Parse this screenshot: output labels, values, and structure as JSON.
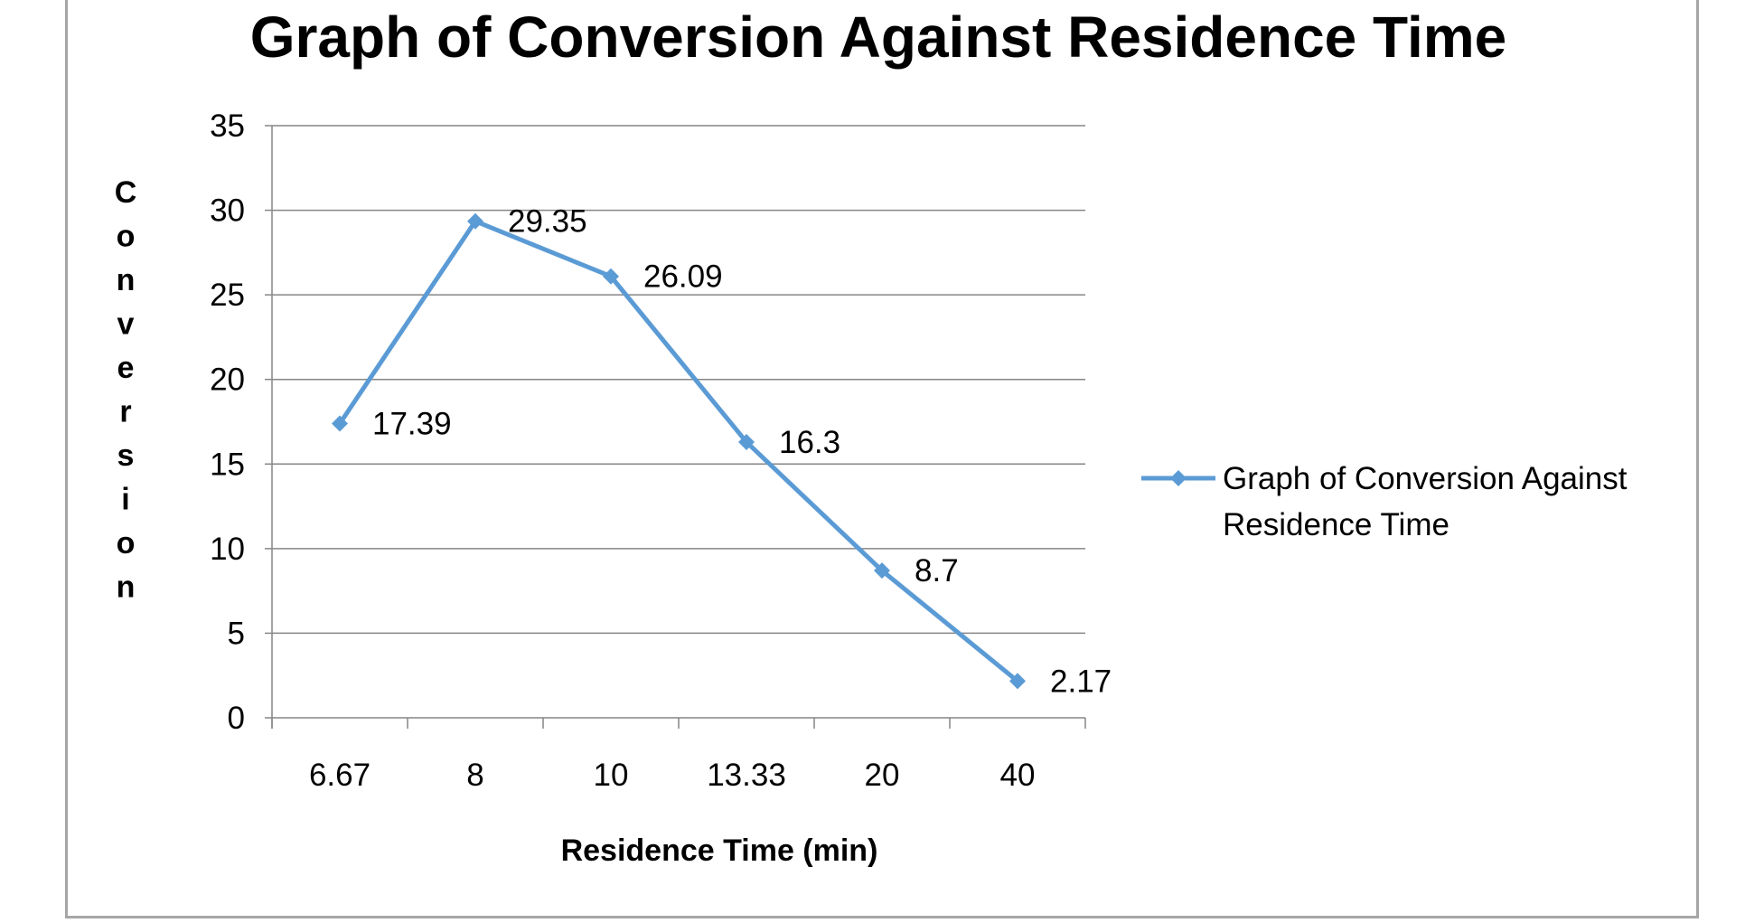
{
  "chart_data": {
    "type": "line",
    "title": "Graph of Conversion Against Residence Time",
    "xlabel": "Residence Time (min)",
    "ylabel": "Conversion",
    "categories": [
      "6.67",
      "8",
      "10",
      "13.33",
      "20",
      "40"
    ],
    "series": [
      {
        "name": "Graph of Conversion Against Residence Time",
        "values": [
          17.39,
          29.35,
          26.09,
          16.3,
          8.7,
          2.17
        ],
        "data_labels": [
          "17.39",
          "29.35",
          "26.09",
          "16.3",
          "8.7",
          "2.17"
        ],
        "color": "#5b9bd5",
        "marker": "diamond"
      }
    ],
    "ylim": [
      0,
      35
    ],
    "yticks": [
      0,
      5,
      10,
      15,
      20,
      25,
      30,
      35
    ],
    "grid": "horizontal",
    "legend": {
      "position": "right",
      "lines": [
        "Graph of Conversion Against",
        "Residence Time"
      ]
    },
    "colors": {
      "gridline": "#868686",
      "axis": "#868686",
      "frame": "#a6a6a6"
    }
  }
}
